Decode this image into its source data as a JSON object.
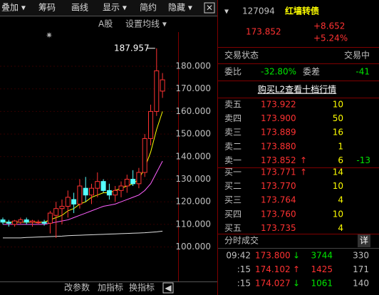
{
  "toolbar": {
    "items": [
      "叠加 ▾",
      "筹码",
      "画线",
      "显示 ▾",
      "简约",
      "隐藏 ▾"
    ]
  },
  "chart_header": {
    "market": "A股",
    "ma_setting": "设置均线 ▾"
  },
  "price_axis": {
    "ticks": [
      {
        "value": 180,
        "label": "180.000"
      },
      {
        "value": 170,
        "label": "170.000"
      },
      {
        "value": 160,
        "label": "160.000"
      },
      {
        "value": 150,
        "label": "150.000"
      },
      {
        "value": 140,
        "label": "140.000"
      },
      {
        "value": 130,
        "label": "130.000"
      },
      {
        "value": 120,
        "label": "120.000"
      },
      {
        "value": 110,
        "label": "110.000"
      },
      {
        "value": 100,
        "label": "100.000"
      }
    ]
  },
  "max_marker": 187.957,
  "candles": [
    [
      112,
      113,
      110,
      111
    ],
    [
      111,
      112,
      109,
      110.5
    ],
    [
      110,
      112,
      109,
      111.5
    ],
    [
      111,
      113,
      110,
      112
    ],
    [
      112,
      113,
      110,
      111
    ],
    [
      111,
      112,
      109,
      111.5
    ],
    [
      111,
      112,
      110,
      111
    ],
    [
      111,
      112,
      109.5,
      110.5
    ],
    [
      110.5,
      116,
      106,
      115
    ],
    [
      114,
      120,
      104,
      117
    ],
    [
      117,
      121,
      110,
      118
    ],
    [
      118,
      125,
      113,
      122
    ],
    [
      121,
      124,
      115,
      119
    ],
    [
      119,
      130,
      117,
      127
    ],
    [
      126,
      131,
      120,
      123
    ],
    [
      123,
      128,
      119,
      126
    ],
    [
      126,
      133,
      122,
      129
    ],
    [
      129,
      130,
      124,
      125
    ],
    [
      125,
      128,
      121,
      123
    ],
    [
      123,
      127,
      120,
      125
    ],
    [
      125,
      129,
      122,
      127
    ],
    [
      127,
      132,
      124,
      130
    ],
    [
      130,
      134,
      127,
      128
    ],
    [
      128,
      135,
      126,
      133
    ],
    [
      133,
      150,
      131,
      148
    ],
    [
      148,
      163,
      145,
      160
    ],
    [
      160,
      187.957,
      158,
      178
    ],
    [
      169,
      177,
      166,
      174
    ]
  ],
  "ma_lines": [
    {
      "color": "#ffff00",
      "values": [
        111,
        111,
        111,
        111,
        111,
        111,
        111,
        111,
        112,
        113,
        114,
        116,
        117,
        119,
        120,
        122,
        123,
        124,
        124,
        125,
        126,
        127,
        128,
        130,
        135,
        142,
        152,
        160
      ]
    },
    {
      "color": "#ff60ff",
      "values": [
        110,
        110,
        110,
        110,
        110,
        110,
        110,
        110,
        110.5,
        111,
        111.5,
        112,
        113,
        114,
        115,
        116,
        117,
        118,
        118.5,
        119,
        120,
        121,
        122,
        123,
        125,
        128,
        133,
        138
      ]
    },
    {
      "color": "#e0e0e0",
      "values": [
        104,
        104,
        104,
        104,
        104.2,
        104.3,
        104.4,
        104.5,
        104.6,
        104.7,
        104.8,
        105,
        105.1,
        105.2,
        105.3,
        105.4,
        105.5,
        105.6,
        105.7,
        105.8,
        105.9,
        106,
        106.1,
        106.2,
        106.3,
        106.5,
        106.7,
        107
      ]
    }
  ],
  "bottom_bar": [
    "改参数",
    "加指标",
    "换指标"
  ],
  "quote": {
    "code": "127094",
    "name": "红墙转债",
    "price": "173.852",
    "change": "+8.652",
    "change_pct": "+5.24%"
  },
  "status": {
    "label": "交易状态",
    "value": "交易中"
  },
  "ratio": {
    "label": "委比",
    "value": "-32.80%",
    "diff_label": "委差",
    "diff_value": "-41"
  },
  "l2_link": "购买L2查看十档行情",
  "sells": [
    {
      "label": "卖五",
      "price": "173.922",
      "volume": "10"
    },
    {
      "label": "卖四",
      "price": "173.900",
      "volume": "50"
    },
    {
      "label": "卖三",
      "price": "173.889",
      "volume": "16"
    },
    {
      "label": "卖二",
      "price": "173.880",
      "volume": "1"
    },
    {
      "label": "卖一",
      "price": "173.852",
      "arrow": "↑",
      "volume": "6",
      "change": "-13"
    }
  ],
  "buys": [
    {
      "label": "买一",
      "price": "173.771",
      "arrow": "↑",
      "volume": "14"
    },
    {
      "label": "买二",
      "price": "173.770",
      "volume": "10"
    },
    {
      "label": "买三",
      "price": "173.764",
      "volume": "4"
    },
    {
      "label": "买四",
      "price": "173.760",
      "volume": "10"
    },
    {
      "label": "买五",
      "price": "173.735",
      "volume": "4"
    }
  ],
  "ticks_panel": {
    "title": "分时成交",
    "detail": "详",
    "rows": [
      {
        "time": "09:42",
        "price": "173.800",
        "arrow": "↓",
        "volume": "3744",
        "count": "330",
        "dir": "down"
      },
      {
        "time": ":15",
        "price": "174.102",
        "arrow": "↑",
        "volume": "1425",
        "count": "171",
        "dir": "up"
      },
      {
        "time": ":15",
        "price": "174.027",
        "arrow": "↓",
        "volume": "1061",
        "count": "140",
        "dir": "down"
      }
    ]
  }
}
